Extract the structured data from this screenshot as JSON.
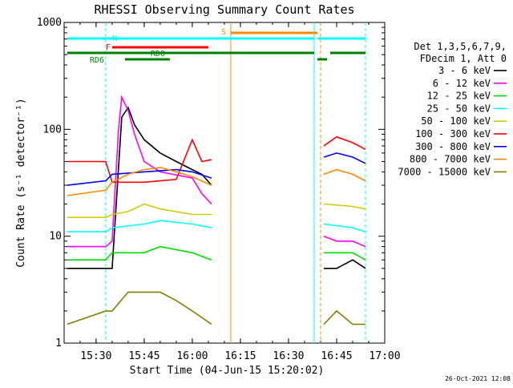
{
  "chart_data": {
    "type": "line",
    "title": "RHESSI Observing Summary Count Rates",
    "xlabel": "Start Time (04-Jun-15 15:20:02)",
    "ylabel": "Count Rate (s⁻¹ detector⁻¹)",
    "yscale": "log",
    "xlim": [
      "15:20:02",
      "17:00"
    ],
    "ylim": [
      1,
      1000
    ],
    "x_ticks": [
      "15:30",
      "15:45",
      "16:00",
      "16:15",
      "16:30",
      "16:45",
      "17:00"
    ],
    "y_ticks": [
      "1",
      "10",
      "100",
      "1000"
    ],
    "legend_placement": "right",
    "legend_header": [
      "Det 1,3,5,6,7,9,",
      "FDecim 1, Att 0"
    ],
    "data_gaps": [
      [
        "16:06",
        "16:41"
      ]
    ],
    "series": [
      {
        "name": "3 - 6 keV",
        "color": "#000000",
        "x": [
          "15:21",
          "15:33",
          "15:35",
          "15:38",
          "15:40",
          "15:42",
          "15:45",
          "15:50",
          "15:55",
          "16:00",
          "16:03",
          "16:06",
          "16:41",
          "16:45",
          "16:50",
          "16:54"
        ],
        "values": [
          5,
          5,
          5,
          130,
          160,
          110,
          80,
          60,
          50,
          42,
          38,
          30,
          5,
          5,
          6,
          5
        ]
      },
      {
        "name": "6 - 12 keV",
        "color": "#ff00ff",
        "x": [
          "15:21",
          "15:33",
          "15:35",
          "15:37",
          "15:38",
          "15:40",
          "15:42",
          "15:45",
          "15:50",
          "16:00",
          "16:03",
          "16:06",
          "16:41",
          "16:45",
          "16:50",
          "16:54"
        ],
        "values": [
          8,
          8,
          9,
          100,
          200,
          150,
          90,
          50,
          40,
          35,
          25,
          20,
          10,
          9,
          9,
          8
        ]
      },
      {
        "name": "12 - 25 keV",
        "color": "#00dd00",
        "x": [
          "15:21",
          "15:33",
          "15:35",
          "15:45",
          "15:50",
          "16:00",
          "16:06",
          "16:41",
          "16:50",
          "16:54"
        ],
        "values": [
          6,
          6,
          7,
          7,
          8,
          7,
          6,
          7,
          7,
          6
        ]
      },
      {
        "name": "25 - 50 keV",
        "color": "#00ffff",
        "x": [
          "15:21",
          "15:33",
          "15:35",
          "15:45",
          "15:50",
          "16:00",
          "16:06",
          "16:41",
          "16:50",
          "16:54"
        ],
        "values": [
          11,
          11,
          12,
          13,
          14,
          13,
          12,
          13,
          12,
          11
        ]
      },
      {
        "name": "50 - 100 keV",
        "color": "#cccc00",
        "x": [
          "15:21",
          "15:33",
          "15:35",
          "15:40",
          "15:45",
          "15:50",
          "16:00",
          "16:06",
          "16:41",
          "16:50",
          "16:54"
        ],
        "values": [
          15,
          15,
          16,
          17,
          20,
          18,
          16,
          16,
          20,
          19,
          18
        ]
      },
      {
        "name": "100 - 300 keV",
        "color": "#ff0000",
        "x": [
          "15:21",
          "15:33",
          "15:35",
          "15:45",
          "15:55",
          "16:00",
          "16:03",
          "16:06",
          "16:41",
          "16:45",
          "16:50",
          "16:54"
        ],
        "values": [
          50,
          50,
          32,
          32,
          34,
          80,
          50,
          52,
          70,
          85,
          75,
          65
        ]
      },
      {
        "name": "300 - 800 keV",
        "color": "#0000ff",
        "x": [
          "15:21",
          "15:33",
          "15:35",
          "15:45",
          "15:55",
          "16:00",
          "16:06",
          "16:41",
          "16:45",
          "16:50",
          "16:54"
        ],
        "values": [
          30,
          33,
          38,
          40,
          42,
          40,
          35,
          55,
          60,
          55,
          48
        ]
      },
      {
        "name": "800 - 7000 keV",
        "color": "#ff8800",
        "x": [
          "15:21",
          "15:33",
          "15:35",
          "15:40",
          "15:45",
          "15:50",
          "15:55",
          "16:00",
          "16:06",
          "16:41",
          "16:45",
          "16:50",
          "16:54"
        ],
        "values": [
          24,
          27,
          32,
          38,
          42,
          44,
          40,
          36,
          30,
          38,
          42,
          38,
          33
        ]
      },
      {
        "name": "7000 - 15000 keV",
        "color": "#808000",
        "x": [
          "15:21",
          "15:33",
          "15:35",
          "15:40",
          "15:45",
          "15:50",
          "15:55",
          "16:00",
          "16:06",
          "16:41",
          "16:45",
          "16:50",
          "16:54"
        ],
        "values": [
          1.5,
          2,
          2,
          3,
          3,
          3,
          2.5,
          2,
          1.5,
          1.5,
          2,
          1.5,
          1.5
        ]
      }
    ],
    "annotations": [
      {
        "text": "N",
        "color": "#00ffff"
      },
      {
        "text": "F",
        "color": "#ff0000"
      },
      {
        "text": "RDO",
        "color": "#008000"
      },
      {
        "text": "RD6",
        "color": "#008000"
      },
      {
        "text": "S",
        "color": "#ff8800"
      }
    ]
  },
  "footer": {
    "timestamp": "26-Oct-2021 12:08"
  }
}
